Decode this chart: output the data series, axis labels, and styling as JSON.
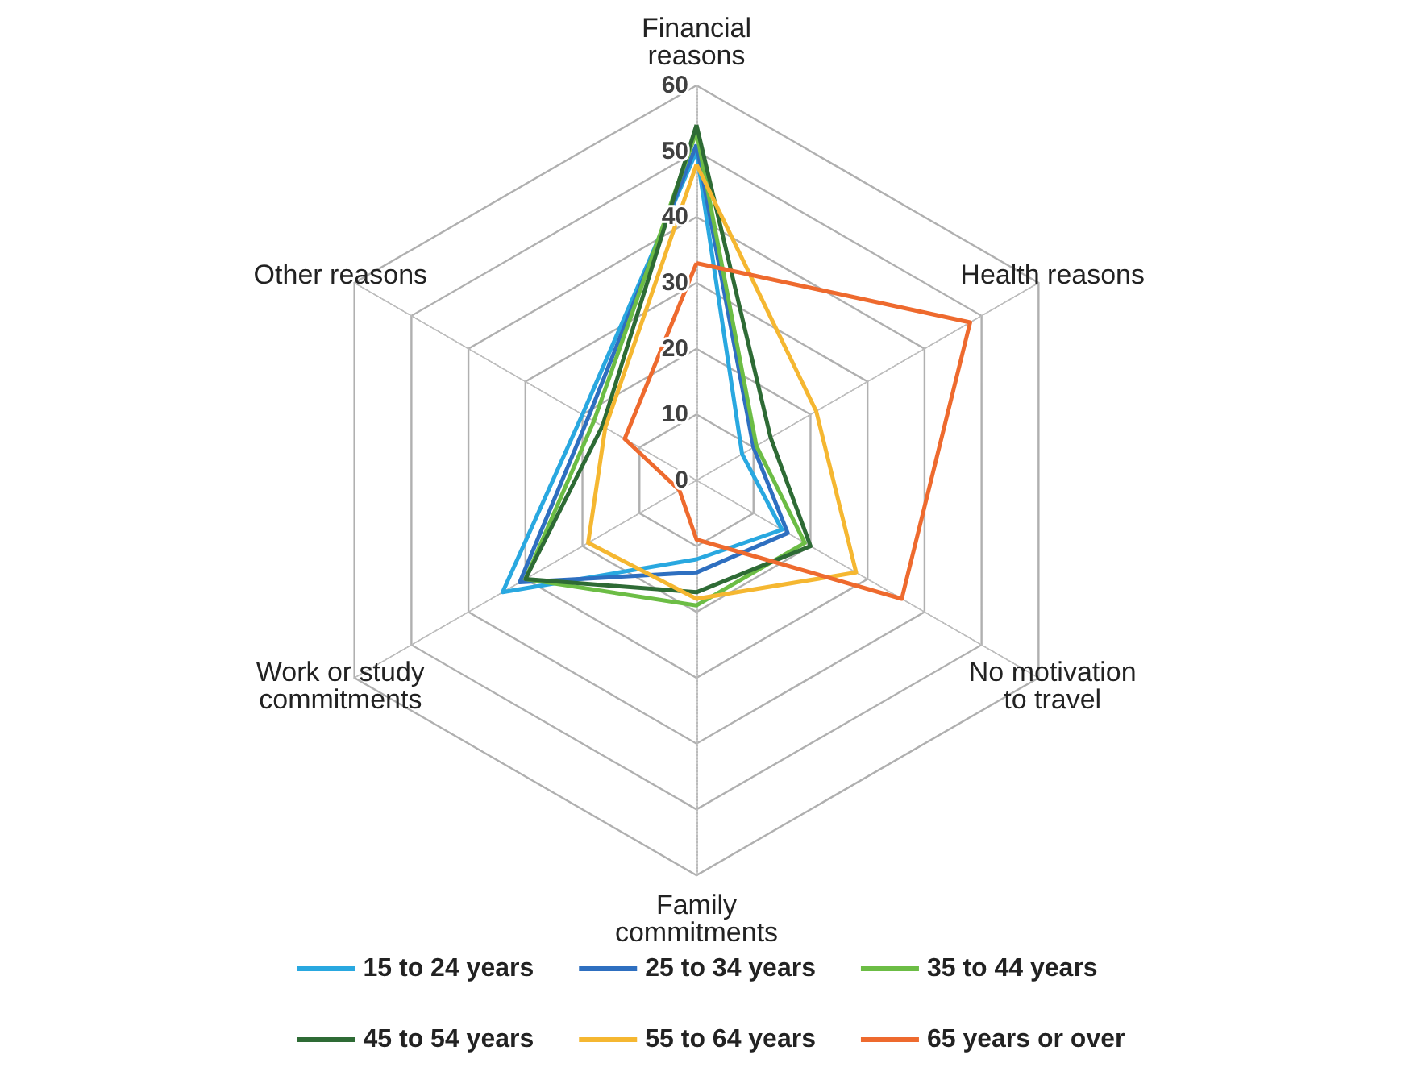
{
  "chart_data": {
    "type": "radar",
    "categories": [
      "Financial reasons",
      "Health reasons",
      "No motivation to travel",
      "Family commitments",
      "Work or study commitments",
      "Other reasons"
    ],
    "ylim": [
      0,
      60
    ],
    "yticks": [
      0,
      10,
      20,
      30,
      40,
      50,
      60
    ],
    "grid": true,
    "legend": "bottom",
    "marker": "none",
    "line_style": "solid",
    "series": [
      {
        "name": "15 to 24 years",
        "color": "#29a8e0",
        "values": [
          50,
          8,
          15,
          12,
          34,
          20
        ]
      },
      {
        "name": "25 to 34 years",
        "color": "#2e6fc0",
        "values": [
          51,
          10,
          16,
          14,
          31,
          19
        ]
      },
      {
        "name": "35 to 44 years",
        "color": "#6cbd45",
        "values": [
          53,
          10.5,
          19,
          19,
          30,
          18
        ]
      },
      {
        "name": "45 to 54 years",
        "color": "#2e6b35",
        "values": [
          54,
          13,
          20,
          17,
          30,
          16.5
        ]
      },
      {
        "name": "55 to 64 years",
        "color": "#f5b731",
        "values": [
          48,
          21,
          28,
          18,
          19,
          16
        ]
      },
      {
        "name": "65 years or over",
        "color": "#ee6a2e",
        "values": [
          33,
          48,
          36,
          9,
          3,
          12.6
        ]
      }
    ]
  }
}
